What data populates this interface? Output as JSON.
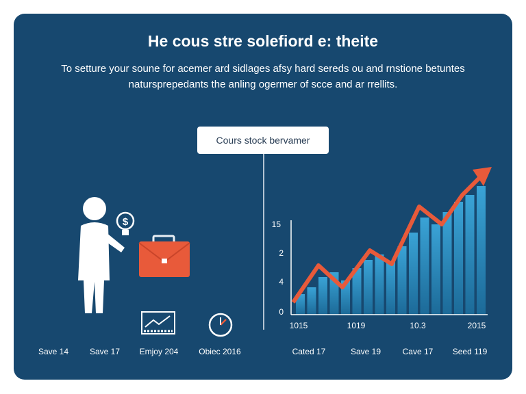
{
  "header": {
    "title": "He cous stre solefiord e: theite",
    "subtitle_lines": [
      "To setture your soune for acemer ard sidlages afsy hard sereds ou and rnstione betuntes",
      "natursprepedants the anling ogermer of scce and ar rrellits."
    ]
  },
  "callout": {
    "label": "Cours stock bervamer"
  },
  "chart": {
    "y_labels": [
      "15",
      "2",
      "4",
      "0"
    ],
    "x_labels": [
      "1015",
      "1019",
      "10.3",
      "2015"
    ]
  },
  "footer": {
    "items": [
      "Save 14",
      "Save 17",
      "Emjoy 204",
      "Obiec 2016",
      "Cated 17",
      "Save 19",
      "Cave 17",
      "Seed 119"
    ]
  }
}
